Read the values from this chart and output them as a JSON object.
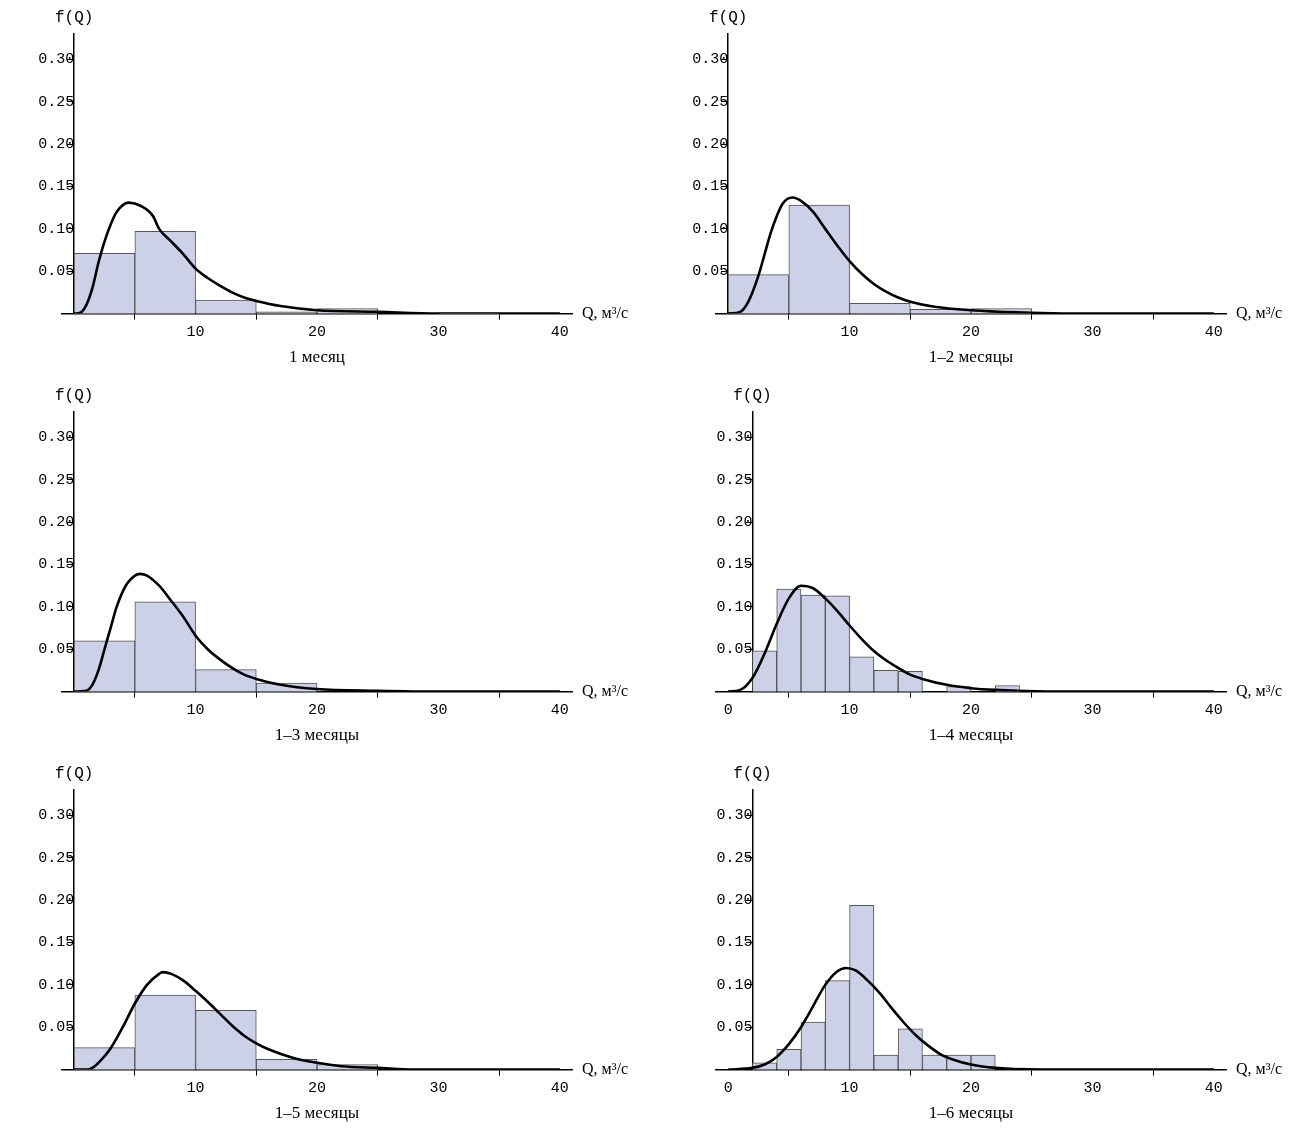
{
  "chart_data": [
    {
      "type": "histogram",
      "title": "1 месяц",
      "xlabel": "Q, м³/с",
      "ylabel": "f(Q)",
      "xlim": [
        -1,
        41
      ],
      "ylim": [
        0,
        0.33
      ],
      "xticks": [
        10,
        20,
        30,
        40
      ],
      "yticks": [
        {
          "value": 0.05,
          "label": "0.05"
        },
        {
          "value": 0.1,
          "label": "0.10"
        },
        {
          "value": 0.15,
          "label": "0.15"
        },
        {
          "value": 0.2,
          "label": "0.20"
        },
        {
          "value": 0.25,
          "label": "0.25"
        },
        {
          "value": 0.3,
          "label": "0.30"
        }
      ],
      "series": [
        {
          "type": "histogram",
          "color": "#ccd1e8",
          "bins": [
            0,
            5,
            10,
            15,
            20,
            25,
            30,
            35
          ],
          "values": [
            0.071,
            0.097,
            0.016,
            0.002,
            0.006,
            0,
            0.001
          ]
        },
        {
          "type": "line",
          "color": "#000000",
          "x": [
            0,
            0.5,
            1,
            1.5,
            2,
            2.5,
            3,
            3.5,
            4.5,
            5.5,
            6.5,
            7,
            8,
            9,
            10,
            11,
            12,
            13,
            14,
            15,
            17,
            20,
            25,
            30,
            40
          ],
          "values": [
            0,
            0.001,
            0.01,
            0.03,
            0.06,
            0.085,
            0.105,
            0.12,
            0.131,
            0.127,
            0.115,
            0.1,
            0.085,
            0.07,
            0.053,
            0.042,
            0.033,
            0.025,
            0.019,
            0.015,
            0.009,
            0.004,
            0.002,
            0,
            0
          ]
        }
      ]
    },
    {
      "type": "histogram",
      "title": "1–2 месяцы",
      "xlabel": "Q, м³/с",
      "ylabel": "f(Q)",
      "xlim": [
        -1,
        41
      ],
      "ylim": [
        0,
        0.33
      ],
      "xticks": [
        10,
        20,
        30,
        40
      ],
      "yticks": [
        {
          "value": 0.05,
          "label": "0.05"
        },
        {
          "value": 0.1,
          "label": "0.10"
        },
        {
          "value": 0.15,
          "label": "0.15"
        },
        {
          "value": 0.2,
          "label": "0.20"
        },
        {
          "value": 0.25,
          "label": "0.25"
        },
        {
          "value": 0.3,
          "label": "0.30"
        }
      ],
      "series": [
        {
          "type": "histogram",
          "color": "#ccd1e8",
          "bins": [
            0,
            5,
            10,
            15,
            20,
            25
          ],
          "values": [
            0.046,
            0.128,
            0.012,
            0.005,
            0.006
          ]
        },
        {
          "type": "line",
          "color": "#000000",
          "x": [
            0,
            1,
            1.5,
            2,
            2.5,
            3,
            3.5,
            4,
            4.5,
            5.3,
            6,
            7,
            8,
            9,
            10,
            11,
            12,
            13,
            14,
            15,
            17,
            20,
            25,
            30,
            40
          ],
          "values": [
            0,
            0.002,
            0.01,
            0.025,
            0.045,
            0.07,
            0.095,
            0.115,
            0.13,
            0.137,
            0.133,
            0.12,
            0.1,
            0.08,
            0.062,
            0.047,
            0.035,
            0.026,
            0.019,
            0.014,
            0.008,
            0.004,
            0.001,
            0,
            0
          ]
        }
      ]
    },
    {
      "type": "histogram",
      "title": "1–3 месяцы",
      "xlabel": "Q, м³/с",
      "ylabel": "f(Q)",
      "xlim": [
        -1,
        41
      ],
      "ylim": [
        0,
        0.33
      ],
      "xticks": [
        10,
        20,
        30,
        40
      ],
      "yticks": [
        {
          "value": 0.05,
          "label": "0.05"
        },
        {
          "value": 0.1,
          "label": "0.10"
        },
        {
          "value": 0.15,
          "label": "0.15"
        },
        {
          "value": 0.2,
          "label": "0.20"
        },
        {
          "value": 0.25,
          "label": "0.25"
        },
        {
          "value": 0.3,
          "label": "0.30"
        }
      ],
      "series": [
        {
          "type": "histogram",
          "color": "#ccd1e8",
          "bins": [
            0,
            5,
            10,
            15,
            20
          ],
          "values": [
            0.06,
            0.106,
            0.026,
            0.01
          ]
        },
        {
          "type": "line",
          "color": "#000000",
          "x": [
            0,
            1,
            1.5,
            2,
            2.5,
            3,
            3.5,
            4,
            4.5,
            5.4,
            6,
            7,
            8,
            9,
            10,
            11,
            12,
            13,
            14,
            15,
            17,
            20,
            25,
            30,
            40
          ],
          "values": [
            0,
            0.001,
            0.008,
            0.025,
            0.05,
            0.075,
            0.1,
            0.118,
            0.13,
            0.139,
            0.137,
            0.125,
            0.107,
            0.088,
            0.066,
            0.05,
            0.038,
            0.028,
            0.02,
            0.015,
            0.008,
            0.003,
            0.001,
            0,
            0
          ]
        }
      ]
    },
    {
      "type": "histogram",
      "title": "1–4 месяцы",
      "xlabel": "Q, м³/с",
      "ylabel": "f(Q)",
      "xlim": [
        -1,
        41
      ],
      "ylim": [
        0,
        0.33
      ],
      "xticks": [
        0,
        10,
        20,
        30,
        40
      ],
      "yticks": [
        {
          "value": 0.05,
          "label": "0.05"
        },
        {
          "value": 0.1,
          "label": "0.10"
        },
        {
          "value": 0.15,
          "label": "0.15"
        },
        {
          "value": 0.2,
          "label": "0.20"
        },
        {
          "value": 0.25,
          "label": "0.25"
        },
        {
          "value": 0.3,
          "label": "0.30"
        }
      ],
      "series": [
        {
          "type": "histogram",
          "color": "#ccd1e8",
          "bins": [
            2,
            4,
            6,
            8,
            10,
            12,
            14,
            16,
            18,
            20,
            22,
            24
          ],
          "values": [
            0.048,
            0.121,
            0.114,
            0.113,
            0.041,
            0.025,
            0.024,
            0,
            0.006,
            0,
            0.007
          ]
        },
        {
          "type": "line",
          "color": "#000000",
          "x": [
            0,
            1,
            2,
            3,
            4,
            5,
            6,
            7,
            8,
            9,
            10,
            11,
            12,
            13,
            14,
            15,
            16,
            18,
            20,
            22,
            27,
            40
          ],
          "values": [
            0,
            0.002,
            0.016,
            0.045,
            0.08,
            0.11,
            0.125,
            0.122,
            0.11,
            0.095,
            0.078,
            0.062,
            0.048,
            0.037,
            0.028,
            0.02,
            0.015,
            0.008,
            0.004,
            0.002,
            0,
            0
          ]
        }
      ]
    },
    {
      "type": "histogram",
      "title": "1–5 месяцы",
      "xlabel": "Q, м³/с",
      "ylabel": "f(Q)",
      "xlim": [
        -1,
        41
      ],
      "ylim": [
        0,
        0.33
      ],
      "xticks": [
        10,
        20,
        30,
        40
      ],
      "yticks": [
        {
          "value": 0.05,
          "label": "0.05"
        },
        {
          "value": 0.1,
          "label": "0.10"
        },
        {
          "value": 0.15,
          "label": "0.15"
        },
        {
          "value": 0.2,
          "label": "0.20"
        },
        {
          "value": 0.25,
          "label": "0.25"
        },
        {
          "value": 0.3,
          "label": "0.30"
        }
      ],
      "series": [
        {
          "type": "histogram",
          "color": "#ccd1e8",
          "bins": [
            0,
            5,
            10,
            15,
            20,
            25
          ],
          "values": [
            0.026,
            0.088,
            0.07,
            0.012,
            0.006
          ]
        },
        {
          "type": "line",
          "color": "#000000",
          "x": [
            0,
            1,
            1.5,
            2,
            3,
            4,
            5,
            6,
            7,
            7.3,
            8,
            9,
            10,
            11,
            12,
            13,
            14,
            15,
            16,
            18,
            20,
            22,
            25,
            28,
            40
          ],
          "values": [
            0,
            0,
            0.002,
            0.008,
            0.025,
            0.05,
            0.078,
            0.1,
            0.113,
            0.115,
            0.113,
            0.105,
            0.093,
            0.08,
            0.066,
            0.052,
            0.04,
            0.031,
            0.024,
            0.014,
            0.008,
            0.004,
            0.002,
            0,
            0
          ]
        }
      ]
    },
    {
      "type": "histogram",
      "title": "1–6 месяцы",
      "xlabel": "Q, м³/с",
      "ylabel": "f(Q)",
      "xlim": [
        -1,
        41
      ],
      "ylim": [
        0,
        0.33
      ],
      "xticks": [
        0,
        10,
        20,
        30,
        40
      ],
      "yticks": [
        {
          "value": 0.05,
          "label": "0.05"
        },
        {
          "value": 0.1,
          "label": "0.10"
        },
        {
          "value": 0.15,
          "label": "0.15"
        },
        {
          "value": 0.2,
          "label": "0.20"
        },
        {
          "value": 0.25,
          "label": "0.25"
        },
        {
          "value": 0.3,
          "label": "0.30"
        }
      ],
      "series": [
        {
          "type": "histogram",
          "color": "#ccd1e8",
          "bins": [
            2,
            4,
            6,
            8,
            10,
            12,
            14,
            16,
            18,
            20,
            22
          ],
          "values": [
            0.008,
            0.024,
            0.056,
            0.105,
            0.194,
            0.017,
            0.048,
            0.017,
            0.017,
            0.017
          ]
        },
        {
          "type": "line",
          "color": "#000000",
          "x": [
            0,
            2,
            3,
            4,
            5,
            6,
            7,
            8,
            9,
            9.7,
            10.5,
            11.5,
            12.5,
            13.5,
            14.5,
            15.5,
            16.5,
            17.5,
            18.5,
            20,
            22,
            26,
            40
          ],
          "values": [
            0,
            0.002,
            0.006,
            0.015,
            0.03,
            0.05,
            0.075,
            0.1,
            0.116,
            0.12,
            0.117,
            0.105,
            0.09,
            0.072,
            0.055,
            0.04,
            0.028,
            0.018,
            0.012,
            0.006,
            0.002,
            0,
            0
          ]
        }
      ]
    }
  ]
}
